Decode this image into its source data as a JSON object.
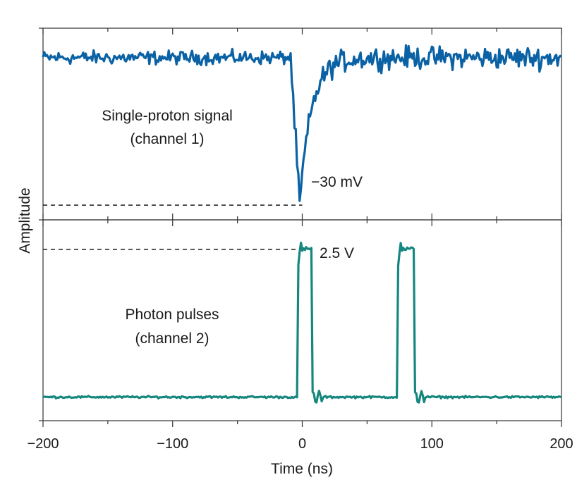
{
  "chart_data": {
    "type": "line",
    "x_unit": "ns",
    "xlabel": "Time (ns)",
    "ylabel": "Amplitude",
    "xlim": [
      -200,
      200
    ],
    "x_ticks": [
      -200,
      -100,
      0,
      100,
      200
    ],
    "x_tick_labels": [
      "−200",
      "−100",
      "0",
      "100",
      "200"
    ],
    "grid": false,
    "panels": [
      {
        "name": "top",
        "series_name": "Single-proton signal (channel 1)",
        "label_line1": "Single-proton signal",
        "label_line2": "(channel 1)",
        "color": "#0a62a5",
        "baseline": 0,
        "ylim": [
          -33,
          6
        ],
        "noise_before": 2.0,
        "noise_after": 3.3,
        "pulse_center": -2,
        "pulse_min": -30,
        "rise_ns": 7,
        "decay_ns": 9,
        "reference": {
          "x_start": -200,
          "x_end": 0,
          "value": -30,
          "label": "−30 mV"
        }
      },
      {
        "name": "bottom",
        "series_name": "Photon pulses (channel 2)",
        "label_line1": "Photon pulses",
        "label_line2": "(channel 2)",
        "color": "#16877f",
        "baseline": 0,
        "ylim": [
          -0.4,
          3.0
        ],
        "noise": 0.025,
        "pulses": [
          {
            "start": -3,
            "end": 7,
            "height": 2.5
          },
          {
            "start": 74,
            "end": 86,
            "height": 2.5
          }
        ],
        "reference": {
          "x_start": -200,
          "x_end": 0,
          "value": 2.5,
          "label": "2.5 V"
        }
      }
    ]
  }
}
